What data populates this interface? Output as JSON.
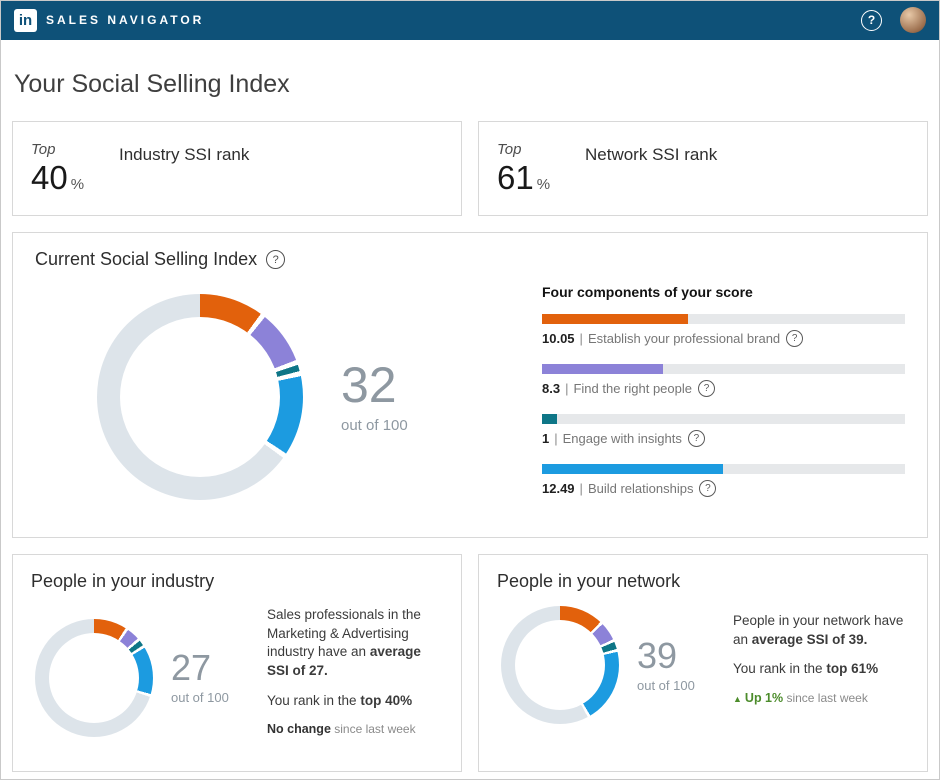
{
  "header": {
    "logo_text": "in",
    "app_name": "SALES NAVIGATOR",
    "help_glyph": "?"
  },
  "ui": {
    "separator": "|",
    "help_glyph": "?",
    "trend_up_glyph": "▲"
  },
  "page": {
    "title": "Your Social Selling Index"
  },
  "rank_cards": [
    {
      "prefix": "Top",
      "value": "40",
      "unit": "%",
      "label": "Industry SSI rank"
    },
    {
      "prefix": "Top",
      "value": "61",
      "unit": "%",
      "label": "Network SSI rank"
    }
  ],
  "current_ssi": {
    "title": "Current Social Selling Index",
    "components_title": "Four components of your score"
  },
  "industry": {
    "title": "People in your industry",
    "line1_plain": "Sales professionals in the Marketing & Advertising industry have an ",
    "line1_bold": "average SSI of 27.",
    "line2_plain": "You rank in the ",
    "line2_bold": "top 40%",
    "line3_bold": "No change",
    "line3_plain": " since last week"
  },
  "network": {
    "title": "People in your network",
    "line1_plain": "People in your network have an ",
    "line1_bold": "average SSI of 39.",
    "line2_plain": "You rank in the ",
    "line2_bold": "top 61%",
    "trend_bold": "Up 1%",
    "trend_plain": " since last week"
  },
  "chart_data": [
    {
      "type": "pie",
      "name": "current-ssi-donut",
      "score": 32,
      "max": 100,
      "out_of_label": "out of 100",
      "segments": [
        {
          "label": "Establish your professional brand",
          "value": 10.05,
          "color": "#e2610c"
        },
        {
          "label": "Find the right people",
          "value": 8.3,
          "color": "#8c82d8"
        },
        {
          "label": "Engage with insights",
          "value": 1,
          "color": "#0e7687"
        },
        {
          "label": "Build relationships",
          "value": 12.49,
          "color": "#1c9be0"
        }
      ],
      "track_color": "#dde4ea",
      "gap_color": "#ffffff"
    },
    {
      "type": "bar",
      "name": "four-components",
      "title": "Four components of your score",
      "categories": [
        "Establish your professional brand",
        "Find the right people",
        "Engage with insights",
        "Build relationships"
      ],
      "values": [
        10.05,
        8.3,
        1,
        12.49
      ],
      "max": 25,
      "colors": [
        "#e2610c",
        "#8c82d8",
        "#0e7687",
        "#1c9be0"
      ],
      "track_color": "#e6e8ea"
    },
    {
      "type": "pie",
      "name": "industry-donut",
      "score": 27,
      "max": 100,
      "out_of_label": "out of 100",
      "segments": [
        {
          "label": "Establish your professional brand",
          "value": 9,
          "color": "#e2610c"
        },
        {
          "label": "Find the right people",
          "value": 3.5,
          "color": "#8c82d8"
        },
        {
          "label": "Engage with insights",
          "value": 1.5,
          "color": "#0e7687"
        },
        {
          "label": "Build relationships",
          "value": 13,
          "color": "#1c9be0"
        }
      ],
      "track_color": "#dde4ea",
      "gap_color": "#ffffff"
    },
    {
      "type": "pie",
      "name": "network-donut",
      "score": 39,
      "max": 100,
      "out_of_label": "out of 100",
      "segments": [
        {
          "label": "Establish your professional brand",
          "value": 12,
          "color": "#e2610c"
        },
        {
          "label": "Find the right people",
          "value": 5,
          "color": "#8c82d8"
        },
        {
          "label": "Engage with insights",
          "value": 2,
          "color": "#0e7687"
        },
        {
          "label": "Build relationships",
          "value": 20,
          "color": "#1c9be0"
        }
      ],
      "track_color": "#dde4ea",
      "gap_color": "#ffffff"
    }
  ]
}
